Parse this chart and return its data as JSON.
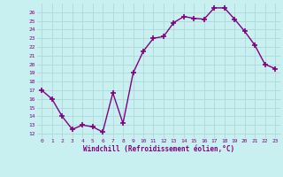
{
  "x": [
    0,
    1,
    2,
    3,
    4,
    5,
    6,
    7,
    8,
    9,
    10,
    11,
    12,
    13,
    14,
    15,
    16,
    17,
    18,
    19,
    20,
    21,
    22,
    23
  ],
  "y": [
    17,
    16,
    14,
    12.5,
    13,
    12.8,
    12.2,
    16.7,
    13.2,
    19,
    21.5,
    23,
    23.2,
    24.8,
    25.5,
    25.3,
    25.2,
    26.5,
    26.5,
    25.2,
    23.8,
    22.2,
    20,
    19.5
  ],
  "line_color": "#800080",
  "marker": "+",
  "marker_color": "#800080",
  "bg_color": "#c8f0f0",
  "grid_color": "#b0d8d8",
  "xlabel": "Windchill (Refroidissement éolien,°C)",
  "xlim": [
    -0.5,
    23.5
  ],
  "ylim": [
    11.5,
    27
  ],
  "yticks": [
    12,
    13,
    14,
    15,
    16,
    17,
    18,
    19,
    20,
    21,
    22,
    23,
    24,
    25,
    26
  ],
  "xticks": [
    0,
    1,
    2,
    3,
    4,
    5,
    6,
    7,
    8,
    9,
    10,
    11,
    12,
    13,
    14,
    15,
    16,
    17,
    18,
    19,
    20,
    21,
    22,
    23
  ],
  "xtick_labels": [
    "0",
    "1",
    "2",
    "3",
    "4",
    "5",
    "6",
    "7",
    "8",
    "9",
    "10",
    "11",
    "12",
    "13",
    "14",
    "15",
    "16",
    "17",
    "18",
    "19",
    "20",
    "21",
    "22",
    "23"
  ],
  "ytick_labels": [
    "12",
    "13",
    "14",
    "15",
    "16",
    "17",
    "18",
    "19",
    "20",
    "21",
    "22",
    "23",
    "24",
    "25",
    "26"
  ],
  "font_color": "#800080",
  "linewidth": 1.0,
  "markersize": 4
}
